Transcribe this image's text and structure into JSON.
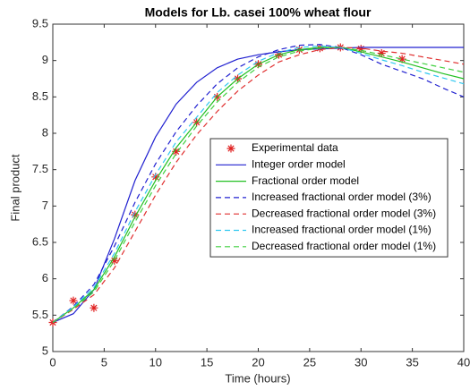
{
  "chart_data": {
    "type": "line",
    "title": "Models for Lb. casei 100% wheat flour",
    "x_label": "Time (hours)",
    "y_label": "Final product",
    "x": [
      0,
      2,
      4,
      6,
      8,
      10,
      12,
      14,
      16,
      18,
      20,
      22,
      24,
      26,
      28,
      30,
      32,
      34,
      36,
      38,
      40
    ],
    "xlim": [
      0,
      40
    ],
    "xticks": [
      0,
      5,
      10,
      15,
      20,
      25,
      30,
      35,
      40
    ],
    "ylim": [
      5,
      9.5
    ],
    "yticks": [
      5,
      5.5,
      6,
      6.5,
      7,
      7.5,
      8,
      8.5,
      9,
      9.5
    ],
    "legend": "center-right",
    "series": [
      {
        "name": "Experimental data",
        "color": "#e02020",
        "style": "marker",
        "values": [
          5.4,
          5.7,
          5.6,
          6.25,
          6.88,
          7.4,
          7.75,
          8.15,
          8.5,
          8.75,
          8.95,
          9.08,
          9.15,
          9.17,
          9.18,
          9.16,
          9.1,
          9.02,
          null,
          null,
          null
        ]
      },
      {
        "name": "Integer order model",
        "color": "#2020d0",
        "style": "solid",
        "values": [
          5.4,
          5.52,
          5.85,
          6.55,
          7.35,
          7.95,
          8.4,
          8.7,
          8.9,
          9.02,
          9.08,
          9.12,
          9.15,
          9.16,
          9.17,
          9.18,
          9.18,
          9.18,
          9.18,
          9.18,
          9.18
        ]
      },
      {
        "name": "Fractional order model",
        "color": "#22c022",
        "style": "solid",
        "values": [
          5.4,
          5.6,
          5.85,
          6.3,
          6.85,
          7.35,
          7.8,
          8.15,
          8.5,
          8.75,
          8.95,
          9.08,
          9.15,
          9.18,
          9.18,
          9.12,
          9.05,
          8.98,
          8.9,
          8.82,
          8.75
        ]
      },
      {
        "name": "Increased fractional order model (3%)",
        "color": "#2020d0",
        "style": "dashed",
        "values": [
          5.4,
          5.62,
          5.92,
          6.45,
          7.05,
          7.58,
          8.02,
          8.38,
          8.68,
          8.9,
          9.05,
          9.15,
          9.21,
          9.22,
          9.18,
          9.08,
          8.95,
          8.85,
          8.75,
          8.62,
          8.5
        ]
      },
      {
        "name": "Decreased fractional order model (3%)",
        "color": "#e03030",
        "style": "dashed",
        "values": [
          5.4,
          5.58,
          5.78,
          6.15,
          6.65,
          7.15,
          7.6,
          7.98,
          8.3,
          8.58,
          8.8,
          8.98,
          9.08,
          9.15,
          9.18,
          9.17,
          9.13,
          9.1,
          9.05,
          9.0,
          8.95
        ]
      },
      {
        "name": "Increased fractional order model (1%)",
        "color": "#30c8f0",
        "style": "dashed",
        "values": [
          5.4,
          5.61,
          5.88,
          6.35,
          6.92,
          7.43,
          7.88,
          8.22,
          8.56,
          8.8,
          8.99,
          9.11,
          9.18,
          9.2,
          9.18,
          9.1,
          9.01,
          8.93,
          8.84,
          8.76,
          8.68
        ]
      },
      {
        "name": "Decreased fractional order model (1%)",
        "color": "#40d040",
        "style": "dashed",
        "values": [
          5.4,
          5.59,
          5.82,
          6.25,
          6.78,
          7.28,
          7.72,
          8.1,
          8.43,
          8.7,
          8.91,
          9.05,
          9.13,
          9.17,
          9.18,
          9.14,
          9.08,
          9.02,
          8.96,
          8.9,
          8.84
        ]
      }
    ]
  }
}
